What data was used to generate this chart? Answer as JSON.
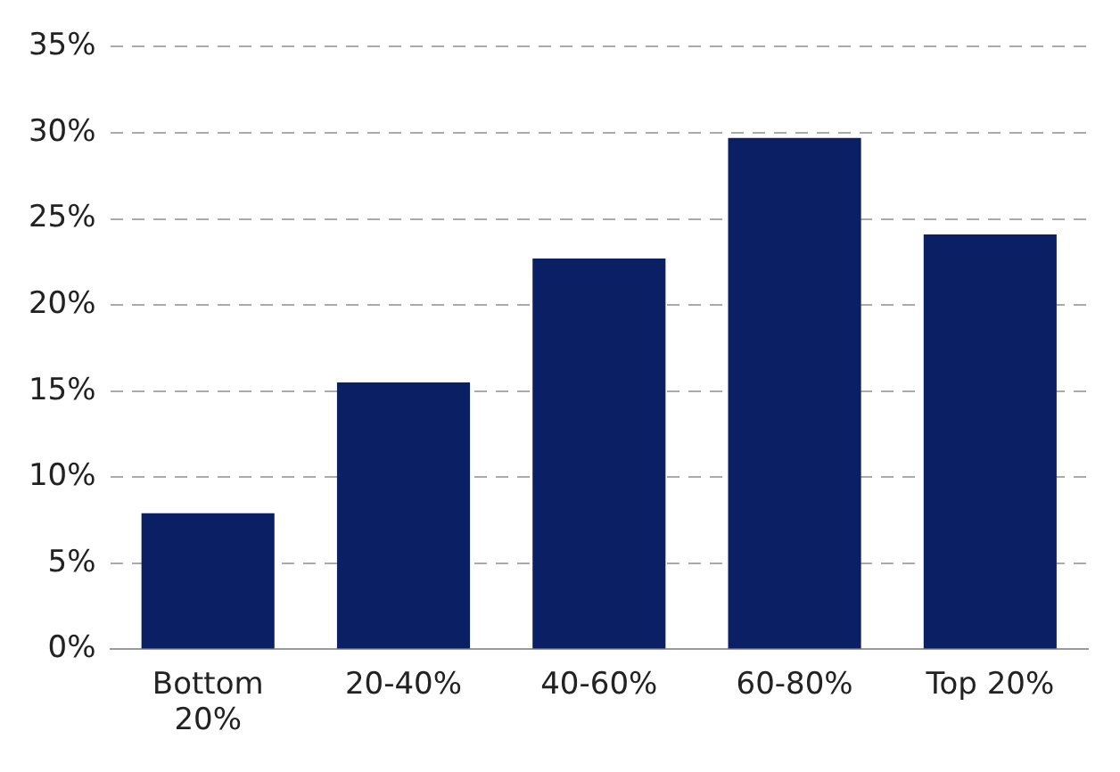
{
  "chart_data": {
    "type": "bar",
    "categories": [
      "Bottom 20%",
      "20-40%",
      "40-60%",
      "60-80%",
      "Top 20%"
    ],
    "values": [
      7.9,
      15.5,
      22.7,
      29.7,
      24.1
    ],
    "color": "#0b1f65",
    "ylim": [
      0,
      35
    ],
    "yticks": [
      {
        "value": 0,
        "label": "0%"
      },
      {
        "value": 5,
        "label": "5%"
      },
      {
        "value": 10,
        "label": "10%"
      },
      {
        "value": 15,
        "label": "15%"
      },
      {
        "value": 20,
        "label": "20%"
      },
      {
        "value": 25,
        "label": "25%"
      },
      {
        "value": 30,
        "label": "30%"
      },
      {
        "value": 35,
        "label": "35%"
      }
    ],
    "grid": "y"
  }
}
